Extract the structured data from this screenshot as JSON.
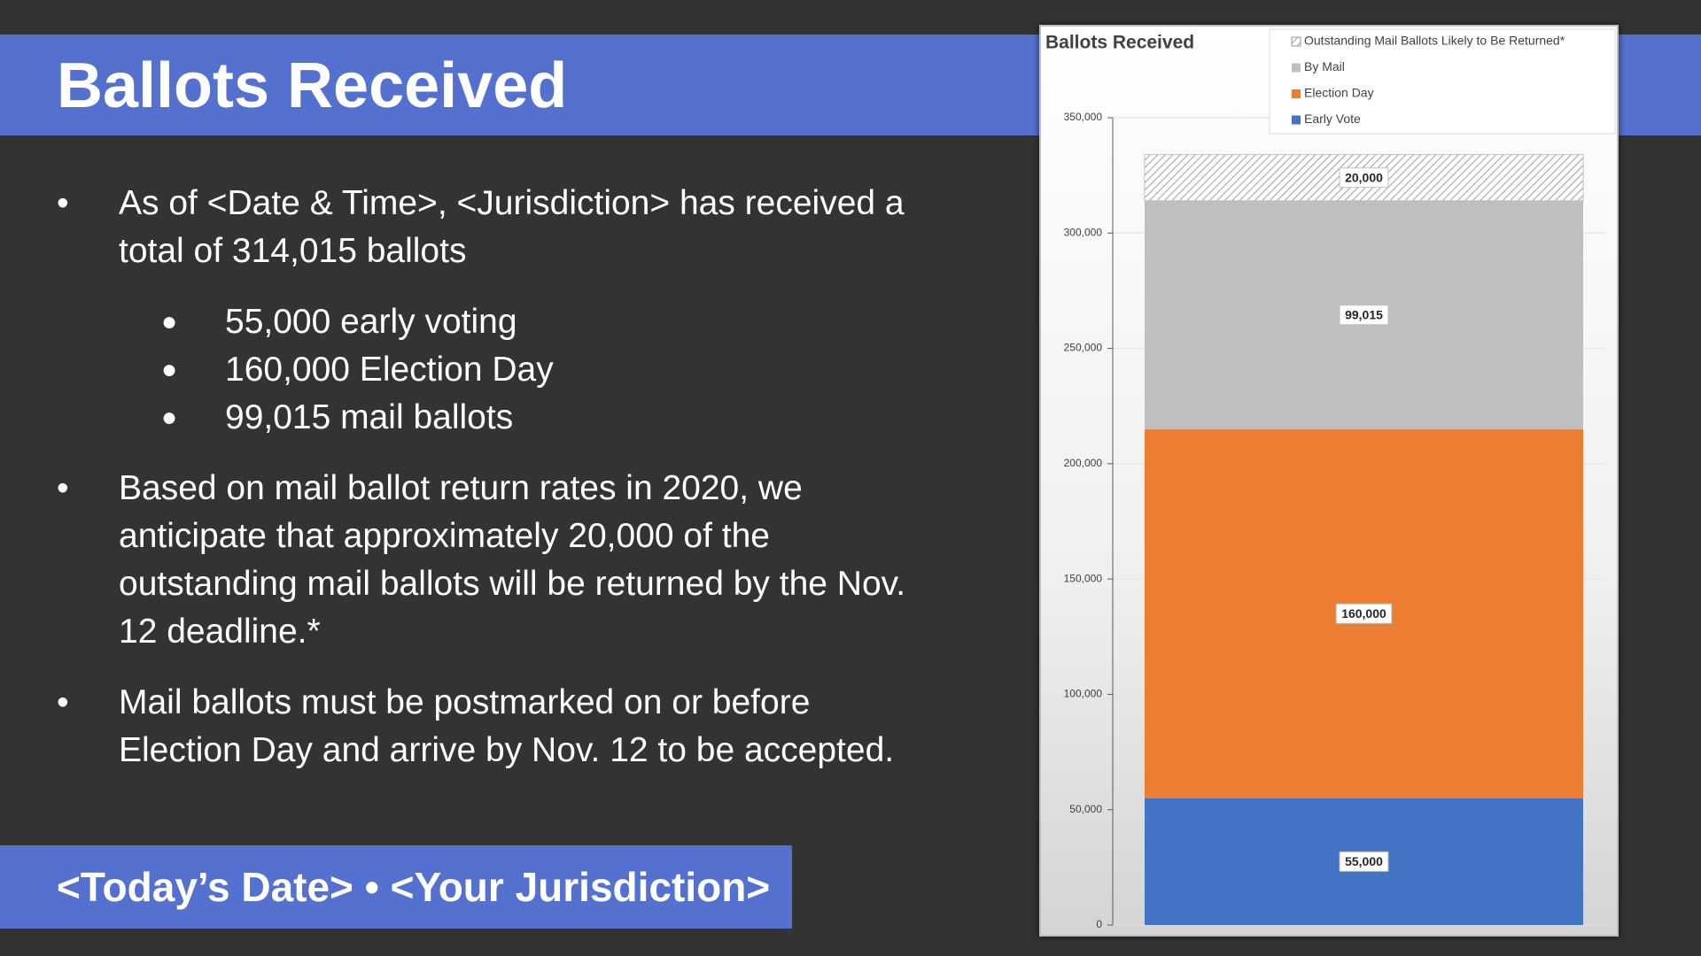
{
  "slide": {
    "title": "Ballots Received",
    "bullets": [
      {
        "text": "As of <Date & Time>, <Jurisdiction> has received a total of 314,015 ballots",
        "items": [
          "55,000 early voting",
          "160,000 Election Day",
          "99,015 mail ballots"
        ]
      },
      {
        "text": "Based on mail ballot return rates in 2020, we anticipate that approximately 20,000 of the outstanding mail ballots will be returned by the Nov. 12 deadline.*"
      },
      {
        "text": "Mail ballots must be postmarked on or before Election Day and arrive by Nov. 12 to be accepted."
      }
    ],
    "footer": "<Today’s Date> • <Your Jurisdiction>"
  },
  "chart_data": {
    "type": "bar",
    "stacked": true,
    "title": "Ballots Received",
    "categories": [
      null
    ],
    "series": [
      {
        "name": "Early Vote",
        "color": "#4472c4",
        "values": [
          55000
        ],
        "value_labels": [
          "55,000"
        ]
      },
      {
        "name": "Election Day",
        "color": "#ed7d31",
        "values": [
          160000
        ],
        "value_labels": [
          "160,000"
        ]
      },
      {
        "name": "By Mail",
        "color": "#bfbfbf",
        "values": [
          99015
        ],
        "value_labels": [
          "99,015"
        ]
      },
      {
        "name": "Outstanding Mail Ballots Likely to Be Returned*",
        "color": "#7f7f7f",
        "pattern": "diagonal-hatch",
        "values": [
          20000
        ],
        "value_labels": [
          "20,000"
        ]
      }
    ],
    "ylim": [
      0,
      350000
    ],
    "yticks": [
      0,
      {
        "value": 50000,
        "label": "50,000"
      },
      {
        "value": 100000,
        "label": "100,000"
      },
      {
        "value": 150000,
        "label": "150,000"
      },
      {
        "value": 200000,
        "label": "200,000"
      },
      {
        "value": 250000,
        "label": "250,000"
      },
      {
        "value": 300000,
        "label": "300,000"
      },
      {
        "value": 350000,
        "label": "350,000"
      }
    ],
    "grid": true,
    "legend": "top-right"
  }
}
